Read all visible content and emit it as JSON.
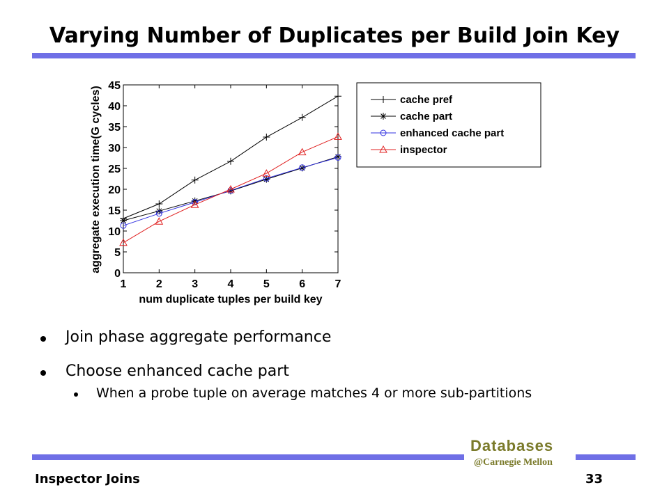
{
  "slide": {
    "title": "Varying Number of Duplicates per Build Join Key",
    "bullets": [
      "Join phase aggregate performance",
      "Choose enhanced cache part",
      "When a probe tuple on average matches 4 or more sub-partitions"
    ],
    "brand": "Databases",
    "brand_sub": "@Carnegie Mellon",
    "footer_left": "Inspector Joins",
    "page_number": "33",
    "accent_color": "#6f6fe6"
  },
  "chart_data": {
    "type": "line",
    "xlabel": "num duplicate tuples per build key",
    "ylabel": "aggregate execution time(G cycles)",
    "x": [
      1,
      2,
      3,
      4,
      5,
      6,
      7
    ],
    "xlim": [
      1,
      7
    ],
    "ylim": [
      0,
      45
    ],
    "xticks": [
      1,
      2,
      3,
      4,
      5,
      6,
      7
    ],
    "yticks": [
      0,
      5,
      10,
      15,
      20,
      25,
      30,
      35,
      40,
      45
    ],
    "grid": false,
    "legend_position": "outside-right",
    "series": [
      {
        "name": "cache pref",
        "color": "#000000",
        "marker": "plus",
        "values": [
          13,
          16.5,
          22.2,
          26.7,
          32.5,
          37.2,
          42.3
        ]
      },
      {
        "name": "cache part",
        "color": "#000000",
        "marker": "star",
        "values": [
          12.5,
          14.8,
          17.2,
          19.6,
          22.4,
          25.1,
          27.8
        ]
      },
      {
        "name": "enhanced cache part",
        "color": "#3030e0",
        "marker": "circle",
        "values": [
          11.3,
          14.2,
          16.9,
          19.7,
          22.6,
          25.2,
          27.6
        ]
      },
      {
        "name": "inspector",
        "color": "#e02020",
        "marker": "triangle",
        "values": [
          7.2,
          12.3,
          16.3,
          20.0,
          23.8,
          28.9,
          32.6
        ]
      }
    ]
  }
}
